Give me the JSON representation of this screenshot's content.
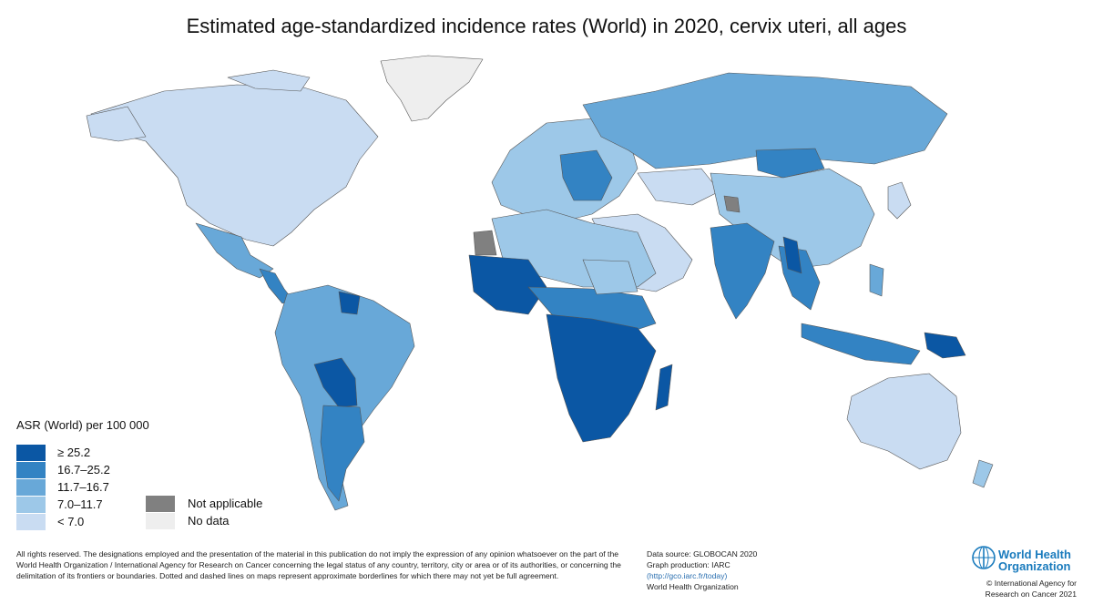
{
  "title": "Estimated age-standardized incidence rates (World) in 2020, cervix uteri, all ages",
  "legend": {
    "title": "ASR (World) per 100 000",
    "classes": [
      {
        "label": "≥ 25.2",
        "color": "#0b57a4"
      },
      {
        "label": "16.7–25.2",
        "color": "#3383c3"
      },
      {
        "label": "11.7–16.7",
        "color": "#68a8d8"
      },
      {
        "label": "7.0–11.7",
        "color": "#9dc8e8"
      },
      {
        "label": "< 7.0",
        "color": "#c9dcf2"
      }
    ],
    "special": [
      {
        "label": "Not applicable",
        "color": "#808080"
      },
      {
        "label": "No data",
        "color": "#eeeeee"
      }
    ]
  },
  "footer": {
    "disclaimer": "All rights reserved. The designations employed and the presentation of the material in this publication do not imply the expression of any opinion whatsoever on the part of the World Health Organization / International Agency for Research on Cancer concerning the legal status of any country, territory, city or area or of its authorities, or concerning the delimitation of its frontiers or boundaries. Dotted and dashed lines on maps represent approximate borderlines for which there may not yet be full agreement.",
    "source": "Data source: GLOBOCAN 2020",
    "production": "Graph production: IARC",
    "url": "(http://gco.iarc.fr/today)",
    "org": "World Health Organization",
    "who_logo_line1": "World Health",
    "who_logo_line2": "Organization",
    "copyright_line1": "© International Agency for",
    "copyright_line2": "Research on Cancer 2021"
  }
}
